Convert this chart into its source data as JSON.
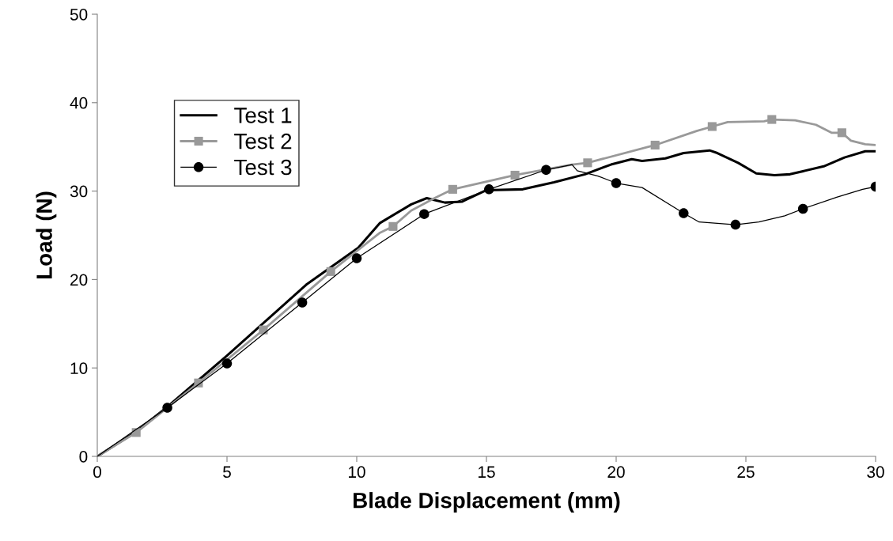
{
  "chart_data": {
    "type": "line",
    "xlabel": "Blade Displacement (mm)",
    "ylabel": "Load (N)",
    "xlim": [
      0,
      30
    ],
    "xticks": [
      0,
      5,
      10,
      15,
      20,
      25,
      30
    ],
    "ylim": [
      0,
      50
    ],
    "yticks": [
      0,
      10,
      20,
      30,
      40,
      50
    ],
    "grid": false,
    "legend": "upper left",
    "series": [
      {
        "name": "Test 1",
        "color": "#000000",
        "marker": "none",
        "x": [
          0,
          1.5,
          2.7,
          5.0,
          8.05,
          10.06,
          10.9,
          12.1,
          12.7,
          13.4,
          14.05,
          15.0,
          16.4,
          17.6,
          18.8,
          19.8,
          20.6,
          21.0,
          21.9,
          22.6,
          23.6,
          23.9,
          24.7,
          25.4,
          26.1,
          26.7,
          28.0,
          28.8,
          29.6,
          30
        ],
        "values": [
          0,
          2.8,
          5.6,
          11.4,
          19.4,
          23.6,
          26.4,
          28.5,
          29.2,
          28.7,
          28.8,
          30.1,
          30.2,
          31.0,
          31.9,
          33.0,
          33.6,
          33.4,
          33.7,
          34.3,
          34.6,
          34.3,
          33.2,
          32.0,
          31.8,
          31.9,
          32.8,
          33.8,
          34.5,
          34.5
        ]
      },
      {
        "color": "#999999",
        "marker": "none",
        "x": [
          0,
          1.5,
          3.9,
          6.4,
          9.0,
          10.9,
          11.4,
          12.1,
          13.0,
          13.7,
          16.1,
          18.3,
          18.9,
          21.5,
          23.1,
          23.7,
          24.3,
          25.7,
          26.0,
          26.9,
          27.7,
          28.3,
          28.7,
          29.05,
          29.6,
          30
        ],
        "values": [
          0,
          2.7,
          8.3,
          14.3,
          20.9,
          25.3,
          26.0,
          27.8,
          29.2,
          30.2,
          31.8,
          33.0,
          33.2,
          35.2,
          36.8,
          37.3,
          37.8,
          37.9,
          38.1,
          38.0,
          37.5,
          36.6,
          36.6,
          35.7,
          35.3,
          35.2
        ]
      },
      {
        "name": "Test 2",
        "type": "scatter",
        "color": "#999999",
        "marker": "square",
        "x": [
          1.5,
          3.9,
          6.4,
          9.0,
          11.4,
          13.7,
          16.1,
          18.9,
          21.5,
          23.7,
          26.0,
          28.7
        ],
        "values": [
          2.7,
          8.3,
          14.3,
          20.9,
          26.0,
          30.2,
          31.8,
          33.2,
          35.2,
          37.3,
          38.1,
          36.6
        ]
      },
      {
        "color": "#000000",
        "marker": "none",
        "x": [
          0,
          2.7,
          5.0,
          7.9,
          10.0,
          12.6,
          15.1,
          17.3,
          18.3,
          18.5,
          19.3,
          20.0,
          21.0,
          22.6,
          23.2,
          24.6,
          25.5,
          26.5,
          27.2,
          28.5,
          29.5,
          30
        ],
        "values": [
          0,
          5.5,
          10.5,
          17.4,
          22.4,
          27.4,
          30.2,
          32.4,
          33.0,
          32.3,
          31.7,
          30.9,
          30.4,
          27.5,
          26.5,
          26.2,
          26.5,
          27.2,
          28.0,
          29.3,
          30.2,
          30.5
        ]
      },
      {
        "name": "Test 3",
        "type": "scatter",
        "color": "#000000",
        "marker": "circle",
        "x": [
          2.7,
          5.0,
          7.9,
          10.0,
          12.6,
          15.1,
          17.3,
          20.0,
          22.6,
          24.6,
          27.2,
          30
        ],
        "values": [
          5.5,
          10.5,
          17.4,
          22.4,
          27.4,
          30.2,
          32.4,
          30.9,
          27.5,
          26.2,
          28.0,
          30.5
        ]
      }
    ]
  }
}
